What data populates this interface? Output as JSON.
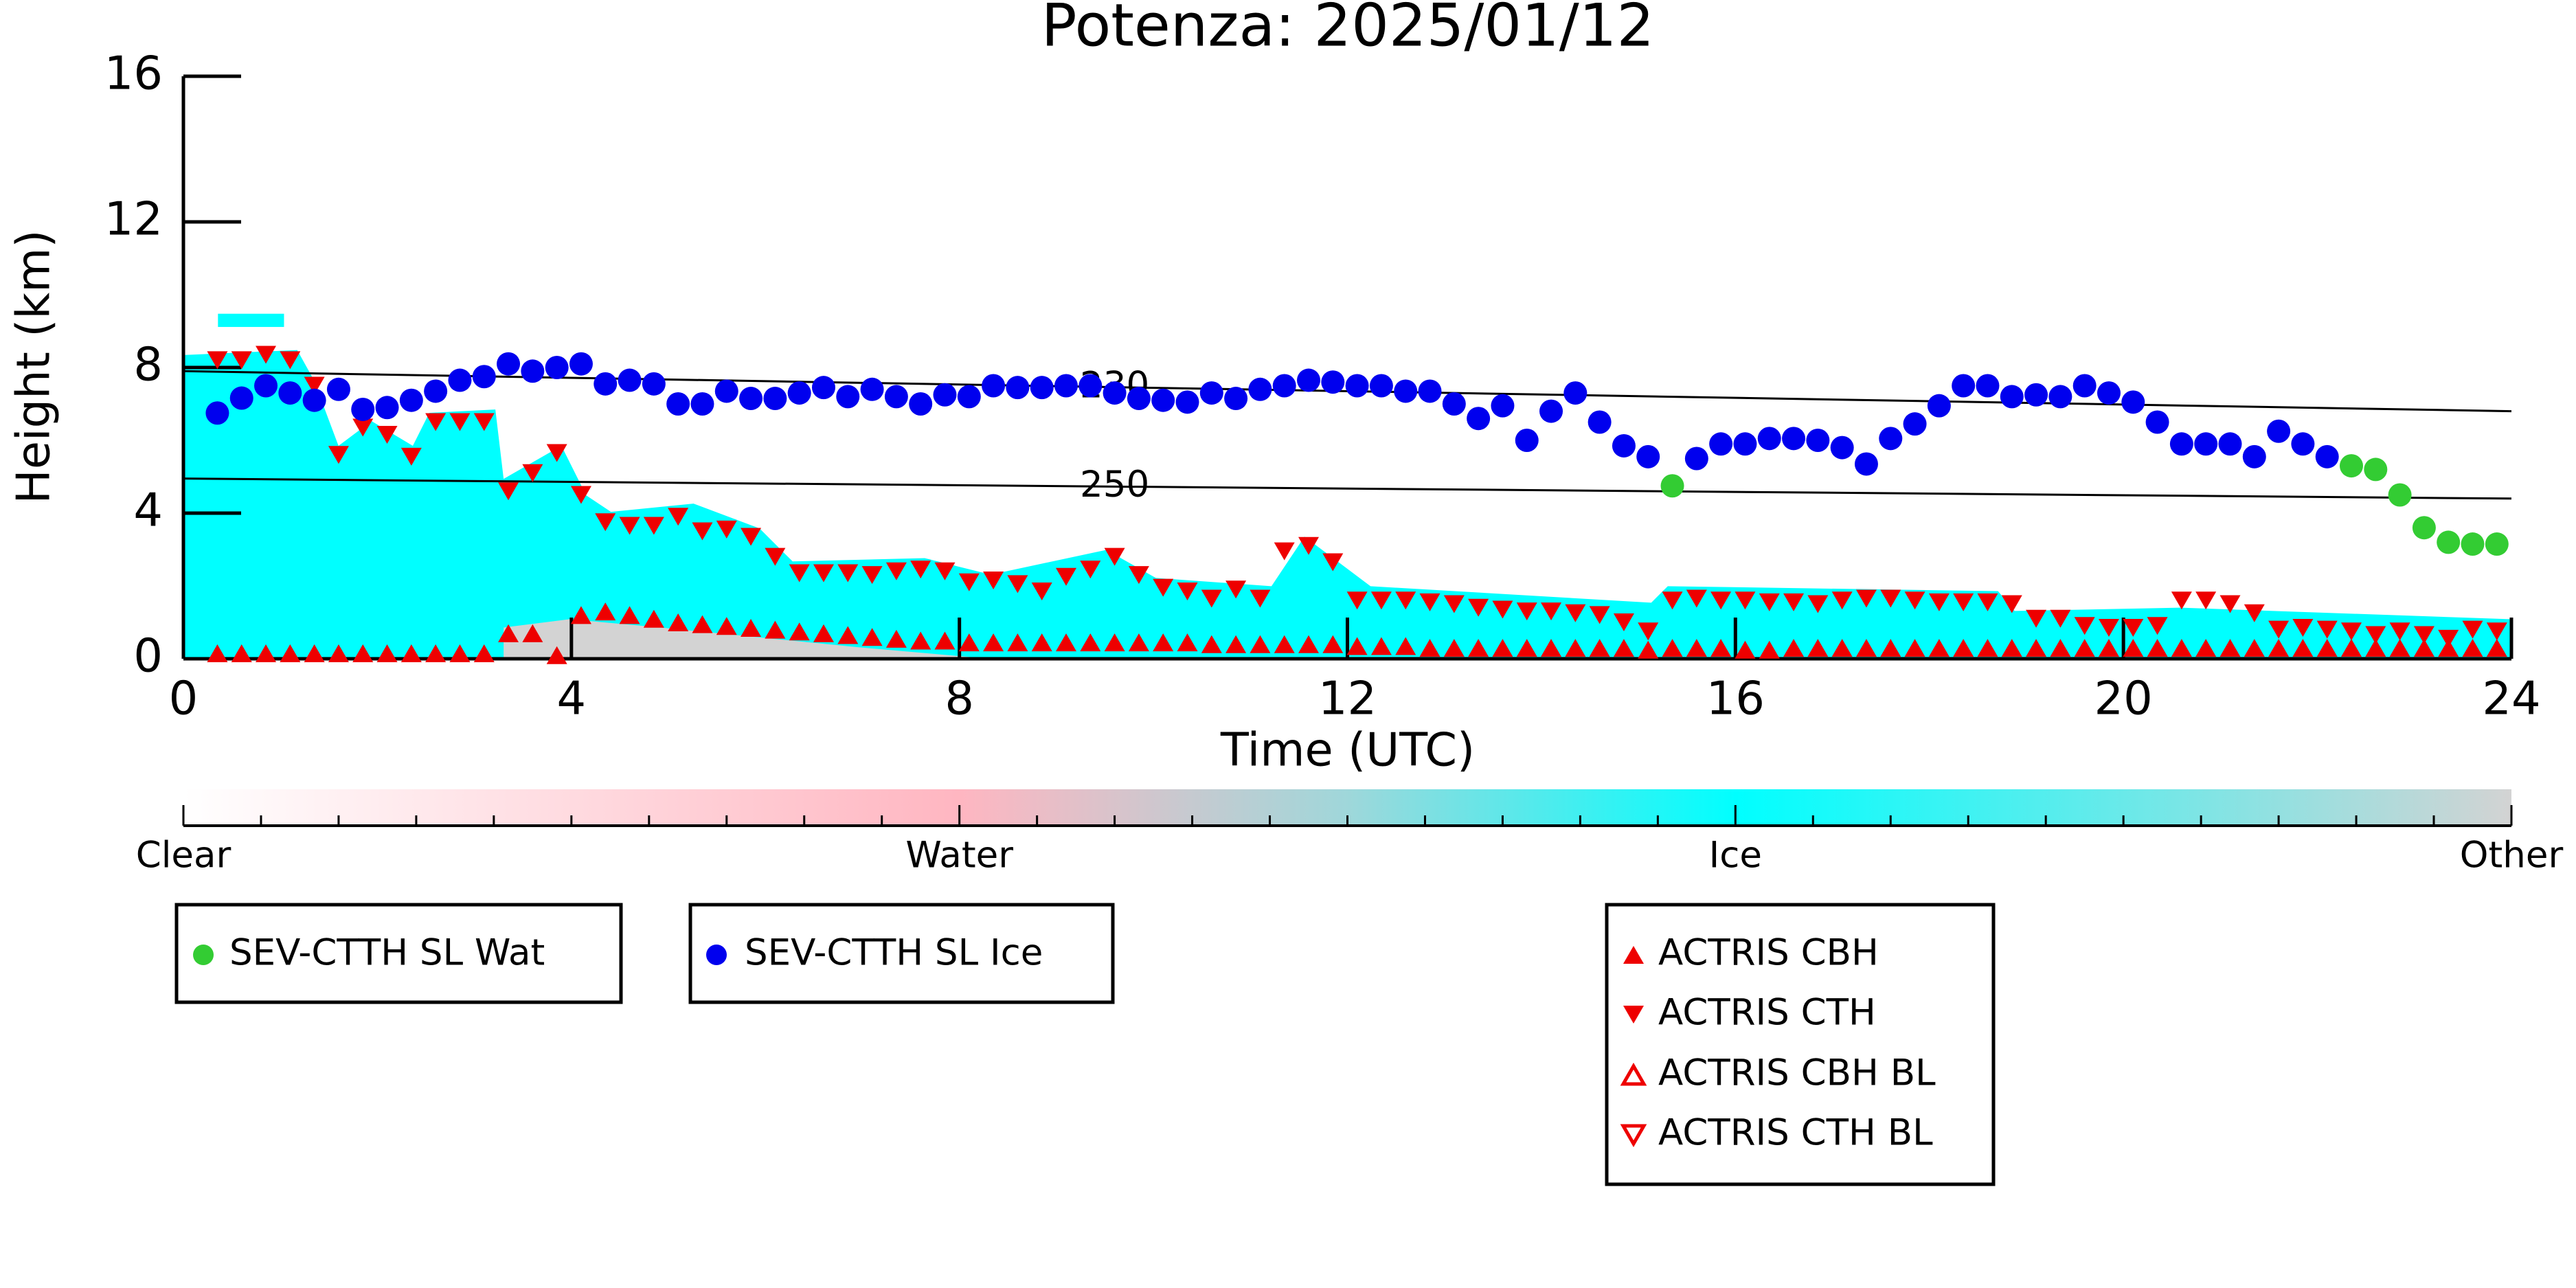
{
  "chart_data": {
    "type": "scatter",
    "title": "Potenza: 2025/01/12",
    "x_label": "Time (UTC)",
    "y_label": "Height (km)",
    "xlim": [
      0,
      24
    ],
    "xticks": [
      0,
      4,
      8,
      12,
      16,
      20,
      24
    ],
    "ylim": [
      0,
      16
    ],
    "yticks": [
      0,
      4,
      8,
      12,
      16
    ],
    "x": [
      0.35,
      0.6,
      0.85,
      1.1,
      1.35,
      1.6,
      1.85,
      2.1,
      2.35,
      2.6,
      2.85,
      3.1,
      3.35,
      3.6,
      3.85,
      4.1,
      4.35,
      4.6,
      4.85,
      5.1,
      5.35,
      5.6,
      5.85,
      6.1,
      6.35,
      6.6,
      6.85,
      7.1,
      7.35,
      7.6,
      7.85,
      8.1,
      8.35,
      8.6,
      8.85,
      9.1,
      9.35,
      9.6,
      9.85,
      10.1,
      10.35,
      10.6,
      10.85,
      11.1,
      11.35,
      11.6,
      11.85,
      12.1,
      12.35,
      12.6,
      12.85,
      13.1,
      13.35,
      13.6,
      13.85,
      14.1,
      14.35,
      14.6,
      14.85,
      15.1,
      15.35,
      15.6,
      15.85,
      16.1,
      16.35,
      16.6,
      16.85,
      17.1,
      17.35,
      17.6,
      17.85,
      18.1,
      18.35,
      18.6,
      18.85,
      19.1,
      19.35,
      19.6,
      19.85,
      20.1,
      20.35,
      20.6,
      20.85,
      21.1,
      21.35,
      21.6,
      21.85,
      22.1,
      22.35,
      22.6,
      22.85,
      23.1,
      23.35,
      23.6,
      23.85
    ],
    "series": [
      {
        "name": "SEV-CTTH SL Wat",
        "color": "#33cc33",
        "marker": "circle",
        "x": [
          15.35,
          22.35,
          22.6,
          22.85,
          23.1,
          23.35,
          23.6,
          23.85
        ],
        "values": [
          4.75,
          5.3,
          5.2,
          4.5,
          3.6,
          3.2,
          3.15,
          3.15
        ]
      },
      {
        "name": "SEV-CTTH SL Ice",
        "color": "#0000ee",
        "marker": "circle",
        "values": [
          6.75,
          7.16,
          7.5,
          7.3,
          7.1,
          7.4,
          6.85,
          6.9,
          7.1,
          7.35,
          7.65,
          7.75,
          8.1,
          7.9,
          8.0,
          8.1,
          7.55,
          7.65,
          7.55,
          7.0,
          7.0,
          7.35,
          7.15,
          7.15,
          7.3,
          7.45,
          7.2,
          7.4,
          7.2,
          7.0,
          7.25,
          7.2,
          7.5,
          7.45,
          7.45,
          7.5,
          7.5,
          7.3,
          7.15,
          7.1,
          7.05,
          7.3,
          7.15,
          7.4,
          7.5,
          7.65,
          7.6,
          7.5,
          7.5,
          7.35,
          7.35,
          7.0,
          6.6,
          6.95,
          6.0,
          6.8,
          7.3,
          6.5,
          5.85,
          5.55,
          null,
          5.5,
          5.9,
          5.9,
          6.05,
          6.05,
          6.0,
          5.8,
          5.35,
          6.05,
          6.45,
          6.95,
          7.5,
          7.5,
          7.2,
          7.25,
          7.2,
          7.5,
          7.3,
          7.05,
          6.5,
          5.9,
          5.9,
          5.9,
          5.55,
          6.25,
          5.9,
          5.55,
          null,
          null,
          null,
          null,
          null,
          null,
          null
        ]
      },
      {
        "name": "ACTRIS CBH",
        "color": "#ee0000",
        "marker": "triangle-up",
        "values": [
          0.15,
          0.15,
          0.15,
          0.15,
          0.15,
          0.15,
          0.15,
          0.15,
          0.15,
          0.15,
          0.15,
          0.15,
          0.7,
          0.7,
          0.1,
          1.2,
          1.3,
          1.2,
          1.1,
          1.0,
          0.95,
          0.9,
          0.85,
          0.8,
          0.75,
          0.7,
          0.65,
          0.6,
          0.55,
          0.5,
          0.5,
          0.45,
          0.45,
          0.45,
          0.45,
          0.45,
          0.45,
          0.45,
          0.45,
          0.45,
          0.45,
          0.4,
          0.4,
          0.4,
          0.4,
          0.4,
          0.4,
          0.35,
          0.35,
          0.35,
          0.3,
          0.3,
          0.3,
          0.3,
          0.3,
          0.3,
          0.3,
          0.3,
          0.3,
          0.25,
          0.3,
          0.3,
          0.3,
          0.25,
          0.25,
          0.3,
          0.3,
          0.3,
          0.3,
          0.3,
          0.3,
          0.3,
          0.3,
          0.3,
          0.3,
          0.3,
          0.3,
          0.3,
          0.3,
          0.3,
          0.3,
          0.3,
          0.3,
          0.3,
          0.3,
          0.3,
          0.3,
          0.3,
          0.3,
          0.3,
          0.3,
          0.3,
          0.3,
          0.3,
          0.3
        ]
      },
      {
        "name": "ACTRIS CTH",
        "color": "#ee0000",
        "marker": "triangle-down",
        "values": [
          8.2,
          8.2,
          8.35,
          8.2,
          7.5,
          5.6,
          6.35,
          6.15,
          5.55,
          6.5,
          6.5,
          6.5,
          4.6,
          5.1,
          5.65,
          4.5,
          3.75,
          3.65,
          3.65,
          3.9,
          3.5,
          3.55,
          3.35,
          2.8,
          2.35,
          2.35,
          2.35,
          2.3,
          2.4,
          2.45,
          2.4,
          2.1,
          2.15,
          2.05,
          1.85,
          2.25,
          2.45,
          2.8,
          2.3,
          1.95,
          1.85,
          1.65,
          1.9,
          1.65,
          2.95,
          3.1,
          2.65,
          1.6,
          1.6,
          1.6,
          1.55,
          1.5,
          1.4,
          1.35,
          1.3,
          1.3,
          1.25,
          1.2,
          1.0,
          0.75,
          1.6,
          1.65,
          1.6,
          1.6,
          1.55,
          1.55,
          1.5,
          1.6,
          1.65,
          1.65,
          1.6,
          1.55,
          1.55,
          1.55,
          1.5,
          1.1,
          1.1,
          0.9,
          0.85,
          0.85,
          0.9,
          1.6,
          1.6,
          1.5,
          1.25,
          0.8,
          0.85,
          0.8,
          0.75,
          0.65,
          0.75,
          0.65,
          0.55,
          0.8,
          0.75
        ]
      },
      {
        "name": "ACTRIS CBH BL",
        "color": "#ee0000",
        "marker": "triangle-up-open",
        "x": [],
        "values": []
      },
      {
        "name": "ACTRIS CTH BL",
        "color": "#ee0000",
        "marker": "triangle-down-open",
        "x": [],
        "values": []
      }
    ],
    "contours": [
      {
        "level": 230,
        "x": [
          0,
          24
        ],
        "values": [
          7.9,
          6.8
        ]
      },
      {
        "level": 250,
        "x": [
          0,
          24
        ],
        "values": [
          4.95,
          4.4
        ]
      }
    ],
    "colorbar": {
      "labels": [
        "Clear",
        "Water",
        "Ice",
        "Other"
      ]
    }
  }
}
